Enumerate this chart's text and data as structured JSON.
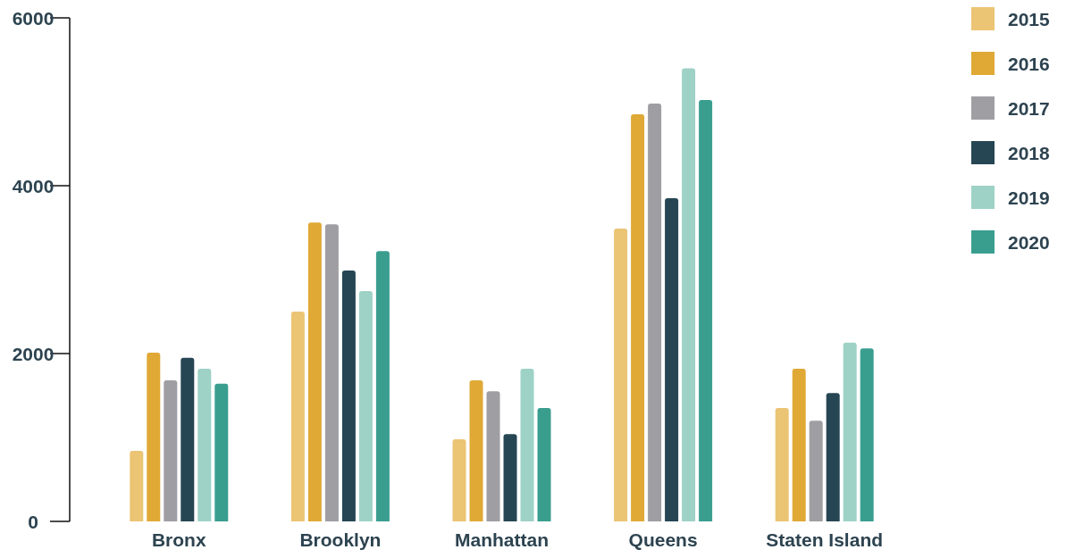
{
  "chart_data": {
    "type": "bar",
    "categories": [
      "Bronx",
      "Brooklyn",
      "Manhattan",
      "Queens",
      "Staten Island"
    ],
    "series": [
      {
        "name": "2015",
        "color": "#ebc474",
        "values": [
          840,
          2500,
          980,
          3490,
          1350
        ]
      },
      {
        "name": "2016",
        "color": "#e0a936",
        "values": [
          2010,
          3560,
          1680,
          4850,
          1820
        ]
      },
      {
        "name": "2017",
        "color": "#9e9ea3",
        "values": [
          1680,
          3540,
          1550,
          4980,
          1200
        ]
      },
      {
        "name": "2018",
        "color": "#264653",
        "values": [
          1950,
          2990,
          1040,
          3850,
          1530
        ]
      },
      {
        "name": "2019",
        "color": "#9ed2c6",
        "values": [
          1820,
          2745,
          1820,
          5400,
          2130
        ]
      },
      {
        "name": "2020",
        "color": "#3a9e8f",
        "values": [
          1640,
          3220,
          1350,
          5020,
          2060
        ]
      }
    ],
    "ylim": [
      0,
      6000
    ],
    "yticks": [
      0,
      2000,
      4000,
      6000
    ],
    "grid": false,
    "legend": "top right"
  }
}
